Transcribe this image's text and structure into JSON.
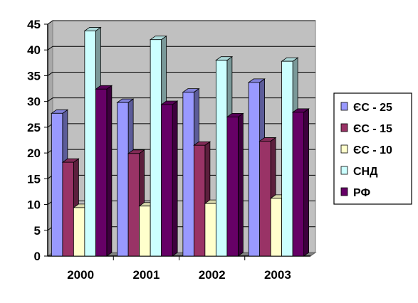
{
  "chart_data": {
    "type": "bar",
    "title": "",
    "xlabel": "",
    "ylabel": "",
    "categories": [
      "2000",
      "2001",
      "2002",
      "2003"
    ],
    "ylim": [
      0,
      45
    ],
    "yticks": [
      0,
      5,
      10,
      15,
      20,
      25,
      30,
      35,
      40,
      45
    ],
    "grid": true,
    "legend_position": "right",
    "plot_background": "#c0c0c0",
    "series": [
      {
        "name": "ЄС - 25",
        "color": "#9999ff",
        "values": [
          27.7,
          29.8,
          31.8,
          33.7
        ]
      },
      {
        "name": "ЄС - 15",
        "color": "#993366",
        "values": [
          18.2,
          19.9,
          21.5,
          22.3
        ]
      },
      {
        "name": "ЄС - 10",
        "color": "#ffffcc",
        "values": [
          9.4,
          9.7,
          10.2,
          11.2
        ]
      },
      {
        "name": "СНД",
        "color": "#ccffff",
        "values": [
          43.7,
          42.0,
          38.0,
          37.8
        ]
      },
      {
        "name": "РФ",
        "color": "#660066",
        "values": [
          32.4,
          29.4,
          27.0,
          27.9
        ]
      }
    ]
  }
}
